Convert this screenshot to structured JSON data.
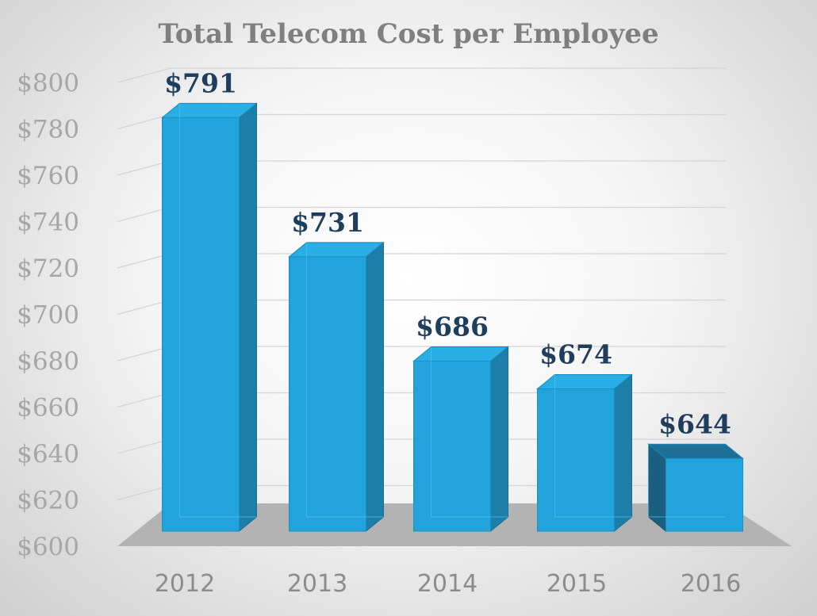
{
  "chart_data": {
    "type": "bar",
    "title": "Total Telecom Cost per Employee",
    "xlabel": "",
    "ylabel": "",
    "categories": [
      "2012",
      "2013",
      "2014",
      "2015",
      "2016"
    ],
    "values": [
      791,
      731,
      686,
      674,
      644
    ],
    "data_labels": [
      "$791",
      "$731",
      "$686",
      "$674",
      "$644"
    ],
    "ylim": [
      600,
      800
    ],
    "yticks": [
      600,
      620,
      640,
      660,
      680,
      700,
      720,
      740,
      760,
      780,
      800
    ],
    "ytick_labels": [
      "$600",
      "$620",
      "$640",
      "$660",
      "$680",
      "$700",
      "$720",
      "$740",
      "$760",
      "$780",
      "$800"
    ],
    "grid": true,
    "legend": "none",
    "style": "3d-column",
    "colors": {
      "bar_front": "#23a3dc",
      "bar_side": "#1c7ea9",
      "bar_top": "#2aaee6",
      "floor": "#b3b3b3",
      "data_label": "#1f3d5c",
      "title": "#7f7f7f",
      "ticks": "#a6a6a6"
    }
  }
}
